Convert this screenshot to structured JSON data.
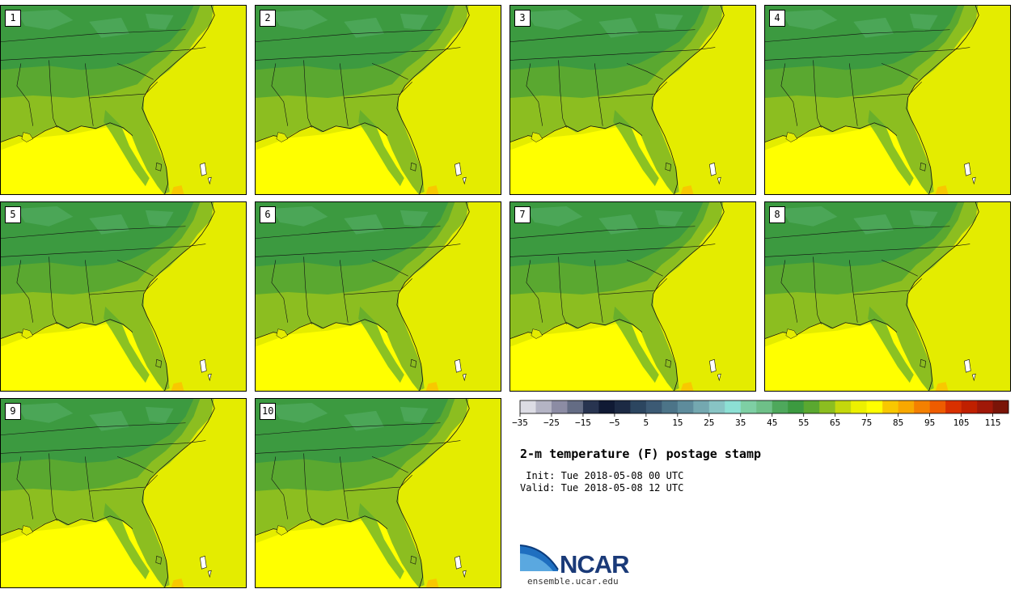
{
  "panels": [
    "1",
    "2",
    "3",
    "4",
    "5",
    "6",
    "7",
    "8",
    "9",
    "10"
  ],
  "colorbar": {
    "colors": [
      "#dcdce4",
      "#b4b4c4",
      "#8c8ca4",
      "#646c84",
      "#283450",
      "#101a34",
      "#1c2a44",
      "#2c4660",
      "#3c5a74",
      "#4c7488",
      "#5e8c9c",
      "#74a8b0",
      "#88c4c4",
      "#8ce0d4",
      "#7ecfa4",
      "#6ec088",
      "#4ea85c",
      "#3c9a40",
      "#5aa830",
      "#8cbe20",
      "#c4d80c",
      "#ecf000",
      "#ffff00",
      "#f8c800",
      "#f8a800",
      "#f48000",
      "#ee5c00",
      "#d83000",
      "#c02000",
      "#a01808",
      "#7a1408"
    ],
    "tick_labels": [
      "−35",
      "−25",
      "−15",
      "−5",
      "5",
      "15",
      "25",
      "35",
      "45",
      "55",
      "65",
      "75",
      "85",
      "95",
      "105",
      "115"
    ]
  },
  "title": "2-m temperature (F) postage stamp",
  "init": " Init: Tue 2018-05-08 00 UTC",
  "valid": "Valid: Tue 2018-05-08 12 UTC",
  "logo": {
    "name": "NCAR",
    "url": "ensemble.ucar.edu"
  }
}
